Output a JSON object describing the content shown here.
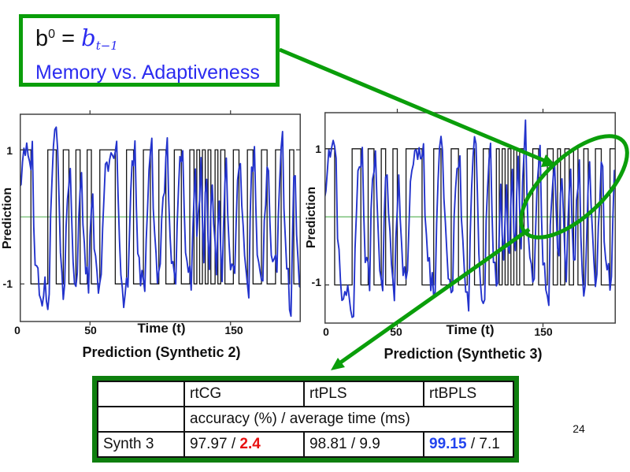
{
  "slide": {
    "page_number": "24"
  },
  "colors": {
    "annotation_green": "#0a9e0a",
    "table_border_green": "#0e7f0e",
    "text_blue": "#2b2bf0",
    "curve_blue": "#2333cc",
    "square_wave_black": "#151515",
    "zero_line_green": "#70bd70",
    "time_highlight_red": "#e81010",
    "accuracy_highlight_blue": "#2244ee"
  },
  "formula_box": {
    "term_base": "b",
    "term_sup": "0",
    "equals": " = ",
    "var_base": "b",
    "var_sub": "t−1",
    "caption": "Memory vs. Adaptiveness"
  },
  "chart_data": [
    {
      "type": "line",
      "caption": "Prediction (Synthetic 2)",
      "xlabel": "Time (t)",
      "ylabel": "Prediction",
      "xlim": [
        0,
        200
      ],
      "ylim": [
        -1.56,
        1.53
      ],
      "grid": false,
      "xticks": [
        {
          "label": "0",
          "t": 0
        },
        {
          "label": "50",
          "t": 50
        },
        {
          "label": "150",
          "t": 150
        }
      ],
      "tick_marks": [
        50,
        150
      ],
      "yticks": [
        {
          "label": "1",
          "v": 1
        },
        {
          "label": "-1",
          "v": -1
        }
      ],
      "zero_line": 0,
      "series": [
        {
          "name": "target signal (square wave ±1)",
          "start_level": 1,
          "toggles": [
            8,
            20,
            26,
            31,
            35,
            40,
            43,
            48,
            51,
            57,
            68,
            76,
            81,
            88,
            93,
            99,
            104,
            110,
            115,
            121,
            124,
            126,
            128,
            130,
            132,
            134,
            136,
            139,
            141,
            143,
            146,
            152,
            156,
            162,
            166,
            172,
            176,
            182,
            186,
            192,
            195
          ]
        },
        {
          "name": "real-time prediction (noisy blue trace)",
          "generator": {
            "seed": 13,
            "gain": 0.45,
            "noise": 0.5,
            "lag": 2,
            "step": 1
          }
        }
      ]
    },
    {
      "type": "line",
      "caption": "Prediction (Synthetic 3)",
      "xlabel": "Time (t)",
      "ylabel": "Prediction",
      "xlim": [
        0,
        200
      ],
      "ylim": [
        -1.56,
        1.53
      ],
      "grid": false,
      "xticks": [
        {
          "label": "0",
          "t": 0
        },
        {
          "label": "50",
          "t": 50
        },
        {
          "label": "150",
          "t": 150
        }
      ],
      "tick_marks": [
        50,
        150
      ],
      "yticks": [
        {
          "label": "1",
          "v": 1
        },
        {
          "label": "-1",
          "v": -1
        }
      ],
      "zero_line": 0,
      "series": [
        {
          "name": "target signal (square wave ±1)",
          "start_level": 1,
          "toggles": [
            7,
            19,
            25,
            30,
            34,
            39,
            42,
            47,
            50,
            56,
            67,
            75,
            80,
            87,
            92,
            98,
            103,
            109,
            113,
            118,
            120,
            122,
            124,
            126,
            128,
            130,
            132,
            134,
            137,
            143,
            147,
            153,
            157,
            160,
            162,
            165,
            168,
            171,
            174,
            178,
            181,
            186,
            190,
            196
          ]
        },
        {
          "name": "real-time prediction (noisy blue trace)",
          "generator": {
            "seed": 97,
            "gain": 0.45,
            "noise": 0.5,
            "lag": 2,
            "step": 1
          }
        }
      ]
    }
  ],
  "table": {
    "headers": [
      "",
      "rtCG",
      "rtPLS",
      "rtBPLS"
    ],
    "subheader": "accuracy (%) / average time (ms)",
    "rows": [
      {
        "label": "Synth 3",
        "cells": [
          {
            "pre": "97.97 / ",
            "hl": "2.4",
            "post": "",
            "hl_class": "hl red"
          },
          {
            "pre": "98.81 / 9.9",
            "hl": "",
            "post": "",
            "hl_class": "hl"
          },
          {
            "pre": "",
            "hl": "99.15",
            "post": " / 7.1",
            "hl_class": "hl blue"
          }
        ]
      }
    ]
  }
}
